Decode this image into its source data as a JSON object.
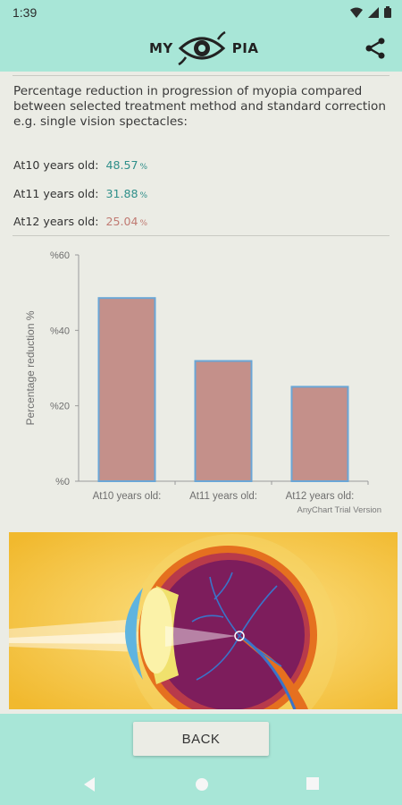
{
  "status": {
    "time": "1:39"
  },
  "app": {
    "logo_left": "MY",
    "logo_right": "PIA"
  },
  "description": "Percentage reduction in progression of myopia compared between selected treatment method and standard correction e.g. single vision spectacles:",
  "stats": [
    {
      "label": "At10 years old:",
      "value": "48.57",
      "unit": "%",
      "color": "#2f8f8a"
    },
    {
      "label": "At11 years old:",
      "value": "31.88",
      "unit": "%",
      "color": "#2f8f8a"
    },
    {
      "label": "At12 years old:",
      "value": "25.04",
      "unit": "%",
      "color": "#c07a72"
    }
  ],
  "chart_data": {
    "type": "bar",
    "categories": [
      "At10 years old:",
      "At11 years old:",
      "At12 years old:"
    ],
    "values": [
      48.57,
      31.88,
      25.04
    ],
    "ylabel": "Percentage reduction %",
    "ylim": [
      0,
      60
    ],
    "yticks": [
      0,
      20,
      40,
      60
    ],
    "ytick_labels": [
      "%0",
      "%20",
      "%40",
      "%60"
    ],
    "watermark": "AnyChart Trial Version",
    "bar_color": "#c4908a",
    "bar_stroke": "#6aa6d6"
  },
  "back_button": "BACK",
  "colors": {
    "accent": "#a8e6d7",
    "background": "#ebece5"
  }
}
